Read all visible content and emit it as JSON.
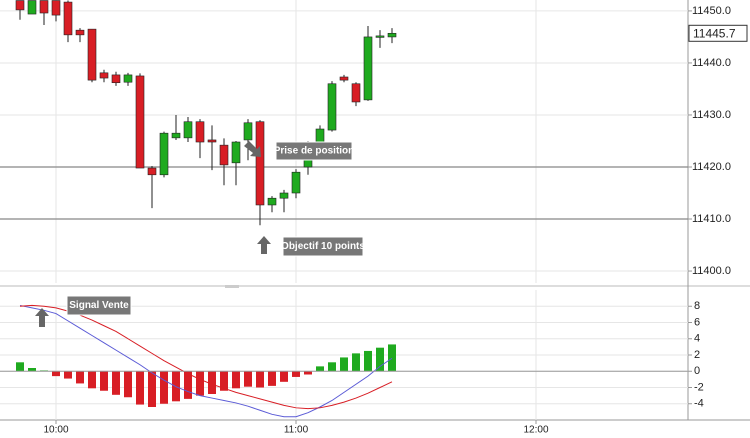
{
  "chart_data": [
    {
      "type": "candlestick",
      "x": [
        591,
        594,
        597,
        600,
        603,
        606,
        609,
        612,
        615,
        618,
        621,
        624,
        627,
        630,
        633,
        636,
        639,
        642,
        645,
        648,
        651,
        654,
        657,
        660,
        663,
        666,
        669,
        672,
        675,
        678,
        681,
        684
      ],
      "open": [
        11452,
        11449.4,
        11452,
        11452,
        11451.7,
        11446.3,
        11446.5,
        11438.1,
        11437.7,
        11436.3,
        11437.5,
        11419.8,
        11418.5,
        11425.6,
        11425.6,
        11428.7,
        11425.2,
        11424.2,
        11420.8,
        11425.2,
        11428.7,
        11412.7,
        11414,
        11415,
        11420,
        11424,
        11427.1,
        11437.3,
        11436,
        11432.9,
        11445,
        11445
      ],
      "high": [
        11452,
        11452,
        11452,
        11452,
        11452,
        11446.7,
        11446.5,
        11438.7,
        11438.3,
        11438.1,
        11438,
        11420.2,
        11426.8,
        11430,
        11429.6,
        11429.2,
        11428,
        11425.5,
        11425,
        11429.2,
        11429,
        11414.4,
        11415.6,
        11419.6,
        11425,
        11428,
        11436.5,
        11437.7,
        11436.3,
        11447.1,
        11446.3,
        11446.7
      ],
      "low": [
        11448.3,
        11449.4,
        11447.3,
        11448,
        11444,
        11444,
        11436.3,
        11436.3,
        11435.6,
        11435.6,
        11419.8,
        11412.1,
        11418,
        11425.2,
        11424.8,
        11421.7,
        11419.4,
        11416.5,
        11416.5,
        11421.3,
        11408.8,
        11411.3,
        11411.3,
        11414,
        11418.5,
        11423.7,
        11426.8,
        11436.3,
        11431.7,
        11432.7,
        11442.9,
        11443.8
      ],
      "close": [
        11450.2,
        11452,
        11449.6,
        11449.2,
        11445.4,
        11445.4,
        11436.7,
        11437.1,
        11436.2,
        11437.7,
        11419.8,
        11418.5,
        11426.5,
        11426.5,
        11428.7,
        11424.8,
        11424.8,
        11420.4,
        11424.8,
        11428.5,
        11412.7,
        11414,
        11415,
        11419,
        11424,
        11427.3,
        11436,
        11436.7,
        11432.5,
        11445,
        11445.2,
        11445.7
      ],
      "up_color": "#1faa1f",
      "down_color": "#d81e25",
      "xlim": [
        586,
        758
      ],
      "ylim": [
        11397.7,
        11452.1
      ],
      "yticks": [
        {
          "value": 11400,
          "label": "11400.0"
        },
        {
          "value": 11410,
          "label": "11410.0"
        },
        {
          "value": 11420,
          "label": "11420.0"
        },
        {
          "value": 11430,
          "label": "11430.0"
        },
        {
          "value": 11440,
          "label": "11440.0"
        },
        {
          "value": 11450,
          "label": "11450.0"
        }
      ],
      "levels": [
        11420,
        11410
      ],
      "last_price": 11445.7,
      "annotations": [
        "Prise de position",
        "Objectif 10 points"
      ],
      "grid": true
    },
    {
      "type": "macd",
      "x": [
        591,
        594,
        597,
        600,
        603,
        606,
        609,
        612,
        615,
        618,
        621,
        624,
        627,
        630,
        633,
        636,
        639,
        642,
        645,
        648,
        651,
        654,
        657,
        660,
        663,
        666,
        669,
        672,
        675,
        678,
        681,
        684
      ],
      "series": [
        {
          "kind": "bar",
          "positive_color": "#1faa1f",
          "negative_color": "#d81e25",
          "values": [
            1.1,
            0.4,
            0.1,
            -0.6,
            -0.9,
            -1.5,
            -2.1,
            -2.4,
            -2.9,
            -3.2,
            -4.1,
            -4.4,
            -4.0,
            -3.7,
            -3.4,
            -3.0,
            -2.8,
            -2.4,
            -2.1,
            -1.9,
            -2.0,
            -1.8,
            -1.3,
            -0.7,
            -0.4,
            0.6,
            1.1,
            1.7,
            2.2,
            2.5,
            2.9,
            3.3
          ]
        },
        {
          "kind": "line",
          "color": "#5b5bd6",
          "values": [
            8.1,
            7.8,
            7.5,
            7.1,
            6.2,
            5.3,
            4.4,
            3.5,
            2.6,
            1.7,
            0.8,
            -0.2,
            -1.1,
            -1.9,
            -2.5,
            -3.0,
            -3.3,
            -3.6,
            -3.9,
            -4.3,
            -4.8,
            -5.3,
            -5.6,
            -5.6,
            -5.1,
            -4.4,
            -3.6,
            -2.6,
            -1.6,
            -0.6,
            0.6,
            1.6
          ]
        },
        {
          "kind": "line",
          "color": "#d81e25",
          "values": [
            8.0,
            8.1,
            8.0,
            7.8,
            7.4,
            6.9,
            6.3,
            5.6,
            4.9,
            4.0,
            3.1,
            2.2,
            1.3,
            0.5,
            -0.3,
            -1.0,
            -1.6,
            -2.1,
            -2.6,
            -3.0,
            -3.4,
            -3.8,
            -4.2,
            -4.5,
            -4.6,
            -4.5,
            -4.2,
            -3.8,
            -3.3,
            -2.7,
            -2.0,
            -1.3
          ]
        }
      ],
      "xlim": [
        586,
        758
      ],
      "ylim": [
        -6,
        10
      ],
      "yticks": [
        -4,
        -2,
        0,
        2,
        4,
        6,
        8
      ],
      "xticks": [
        {
          "value": 600,
          "label": "10:00"
        },
        {
          "value": 660,
          "label": "11:00"
        },
        {
          "value": 720,
          "label": "12:00"
        }
      ],
      "annotations": [
        "Signal Vente"
      ],
      "grid": true
    }
  ]
}
